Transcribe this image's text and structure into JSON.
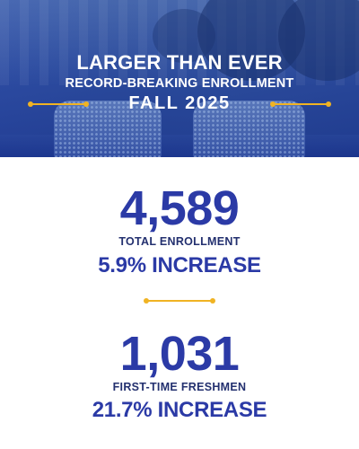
{
  "hero": {
    "title": "LARGER THAN EVER",
    "subtitle": "RECORD-BREAKING ENROLLMENT",
    "term": "FALL 2025"
  },
  "stats": [
    {
      "number": "4,589",
      "label": "TOTAL ENROLLMENT",
      "change": "5.9% INCREASE"
    },
    {
      "number": "1,031",
      "label": "FIRST-TIME FRESHMEN",
      "change": "21.7% INCREASE"
    }
  ],
  "colors": {
    "primary_blue": "#2b3aa6",
    "label_navy": "#23306f",
    "accent_gold": "#f0b323",
    "hero_overlay": "#2848a5"
  }
}
